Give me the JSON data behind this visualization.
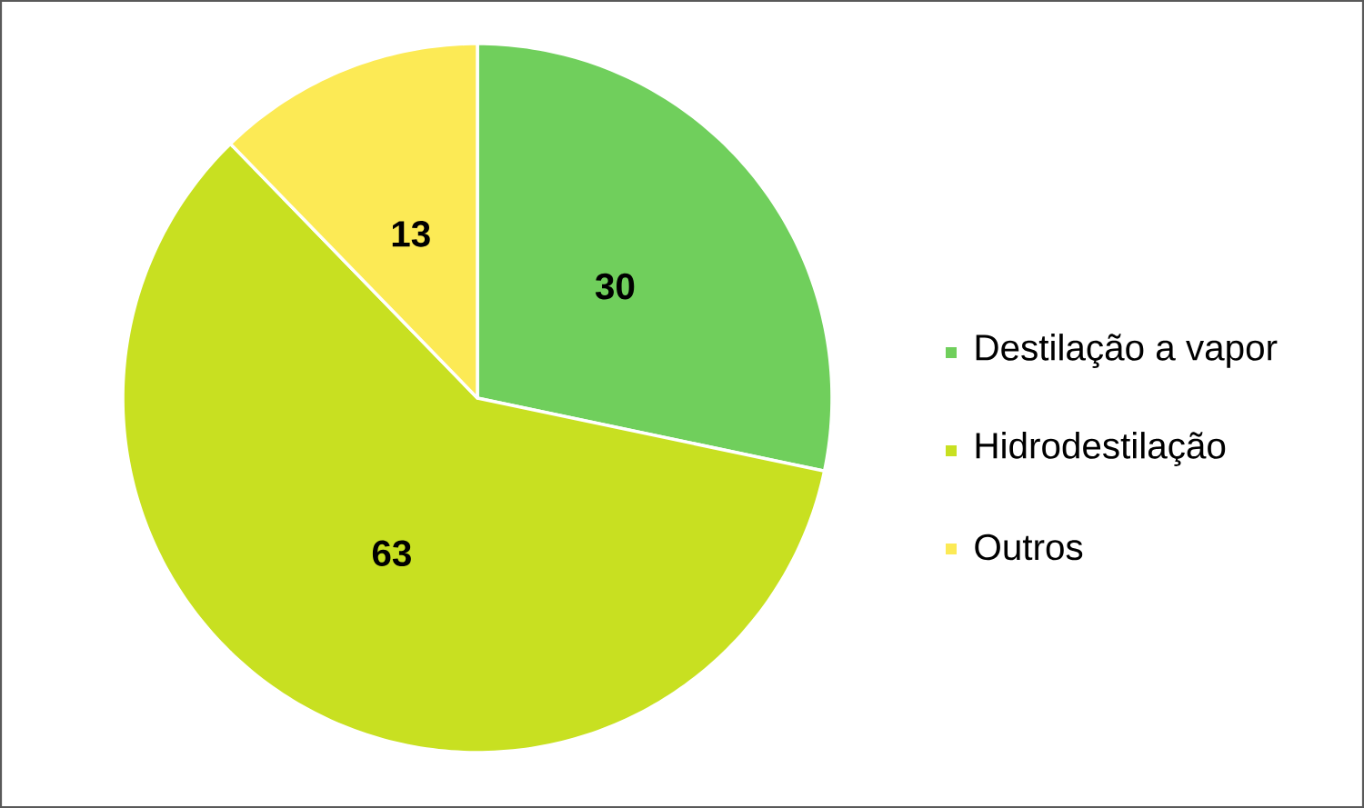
{
  "chart_data": {
    "type": "pie",
    "categories": [
      "Destilação a vapor",
      "Hidrodestilação",
      "Outros"
    ],
    "values": [
      30,
      63,
      13
    ],
    "colors": [
      "#70cf5c",
      "#c8e021",
      "#fcea55"
    ],
    "data_labels": true,
    "legend": "right"
  }
}
